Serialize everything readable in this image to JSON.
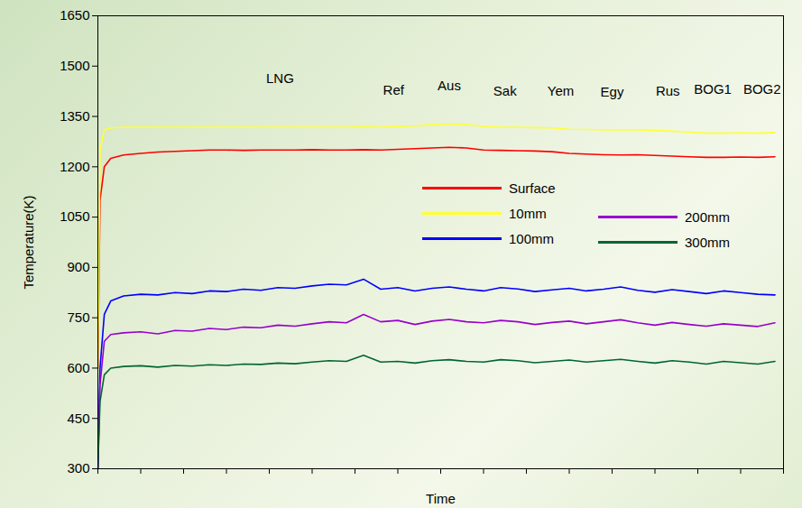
{
  "chart_data": {
    "type": "line",
    "xlabel": "Time",
    "ylabel": "Temperature(K)",
    "xlim": [
      0,
      16
    ],
    "xticks": [
      0,
      1,
      2,
      3,
      4,
      5,
      6,
      7,
      8,
      9,
      10,
      11,
      12,
      13,
      14,
      15,
      16
    ],
    "ylim": [
      300,
      1650
    ],
    "yticks": [
      300,
      450,
      600,
      750,
      900,
      1050,
      1200,
      1350,
      1500,
      1650
    ],
    "tick_labels": "y",
    "legend": "center",
    "x": [
      0,
      0.05,
      0.15,
      0.3,
      0.6,
      1,
      1.4,
      1.8,
      2.2,
      2.6,
      3,
      3.4,
      3.8,
      4.2,
      4.6,
      5,
      5.4,
      5.8,
      6.2,
      6.6,
      7,
      7.4,
      7.8,
      8.2,
      8.6,
      9,
      9.4,
      9.8,
      10.2,
      10.6,
      11,
      11.4,
      11.8,
      12.2,
      12.6,
      13,
      13.4,
      13.8,
      14.2,
      14.6,
      15,
      15.4,
      15.8
    ],
    "series": [
      {
        "name": "Surface",
        "color": "#ff0000",
        "values": [
          600,
          1100,
          1200,
          1225,
          1235,
          1240,
          1244,
          1246,
          1248,
          1250,
          1250,
          1249,
          1250,
          1250,
          1250,
          1251,
          1250,
          1250,
          1251,
          1250,
          1252,
          1254,
          1256,
          1258,
          1256,
          1250,
          1249,
          1248,
          1247,
          1245,
          1240,
          1238,
          1236,
          1235,
          1236,
          1234,
          1232,
          1230,
          1228,
          1228,
          1229,
          1228,
          1230
        ]
      },
      {
        "name": "10mm",
        "color": "#ffff33",
        "values": [
          600,
          1250,
          1310,
          1316,
          1318,
          1318,
          1318,
          1318,
          1318,
          1318,
          1318,
          1318,
          1318,
          1318,
          1318,
          1318,
          1318,
          1318,
          1319,
          1318,
          1320,
          1322,
          1325,
          1328,
          1326,
          1320,
          1318,
          1318,
          1317,
          1316,
          1312,
          1311,
          1310,
          1310,
          1310,
          1308,
          1306,
          1303,
          1300,
          1300,
          1301,
          1300,
          1302
        ]
      },
      {
        "name": "100mm",
        "color": "#0000ff",
        "values": [
          300,
          600,
          760,
          800,
          815,
          820,
          818,
          825,
          822,
          830,
          828,
          835,
          832,
          840,
          838,
          845,
          850,
          848,
          865,
          835,
          840,
          830,
          838,
          842,
          835,
          830,
          840,
          836,
          828,
          833,
          838,
          830,
          835,
          842,
          832,
          826,
          834,
          828,
          822,
          830,
          825,
          820,
          818
        ]
      },
      {
        "name": "200mm",
        "color": "#9900cc",
        "values": [
          300,
          550,
          680,
          700,
          705,
          708,
          702,
          712,
          710,
          718,
          715,
          722,
          720,
          728,
          725,
          732,
          738,
          735,
          760,
          738,
          742,
          730,
          740,
          745,
          738,
          735,
          742,
          738,
          730,
          736,
          740,
          732,
          738,
          744,
          735,
          728,
          736,
          730,
          725,
          732,
          728,
          724,
          735
        ]
      },
      {
        "name": "300mm",
        "color": "#006633",
        "values": [
          300,
          500,
          580,
          600,
          605,
          607,
          603,
          608,
          606,
          610,
          608,
          612,
          611,
          615,
          613,
          618,
          622,
          620,
          638,
          618,
          620,
          615,
          622,
          625,
          620,
          618,
          625,
          622,
          616,
          620,
          624,
          618,
          622,
          626,
          620,
          615,
          622,
          618,
          612,
          620,
          616,
          612,
          620
        ]
      }
    ],
    "annotations": [
      {
        "text": "LNG",
        "x": 4.25,
        "y": 1462
      },
      {
        "text": "Ref",
        "x": 6.9,
        "y": 1428
      },
      {
        "text": "Aus",
        "x": 8.2,
        "y": 1441
      },
      {
        "text": "Sak",
        "x": 9.5,
        "y": 1425
      },
      {
        "text": "Yem",
        "x": 10.8,
        "y": 1425
      },
      {
        "text": "Egy",
        "x": 12.0,
        "y": 1422
      },
      {
        "text": "Rus",
        "x": 13.3,
        "y": 1425
      },
      {
        "text": "BOG1",
        "x": 14.35,
        "y": 1430
      },
      {
        "text": "BOG2",
        "x": 15.5,
        "y": 1430
      }
    ]
  }
}
